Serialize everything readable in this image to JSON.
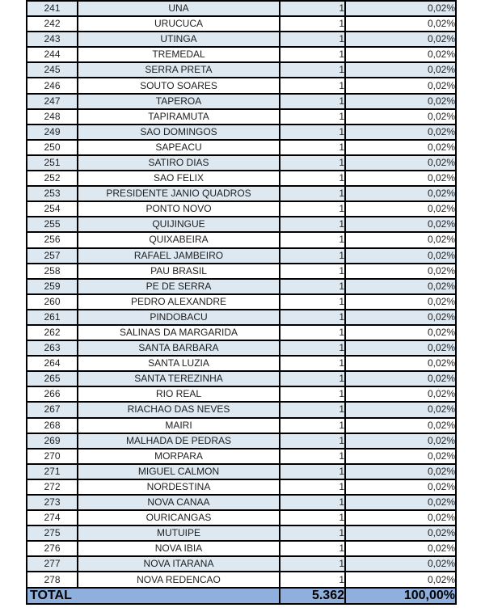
{
  "colors": {
    "stripe": "#dde8f1",
    "total_row_background": "#8fafdd",
    "border": "#000000",
    "text": "#1f1f1f",
    "total_text": "#000000"
  },
  "table": {
    "rows": [
      {
        "rank": "241",
        "municipality": "UNA",
        "count": "1",
        "percent": "0,02%"
      },
      {
        "rank": "242",
        "municipality": "URUCUCA",
        "count": "1",
        "percent": "0,02%"
      },
      {
        "rank": "243",
        "municipality": "UTINGA",
        "count": "1",
        "percent": "0,02%"
      },
      {
        "rank": "244",
        "municipality": "TREMEDAL",
        "count": "1",
        "percent": "0,02%"
      },
      {
        "rank": "245",
        "municipality": "SERRA PRETA",
        "count": "1",
        "percent": "0,02%"
      },
      {
        "rank": "246",
        "municipality": "SOUTO SOARES",
        "count": "1",
        "percent": "0,02%"
      },
      {
        "rank": "247",
        "municipality": "TAPEROA",
        "count": "1",
        "percent": "0,02%"
      },
      {
        "rank": "248",
        "municipality": "TAPIRAMUTA",
        "count": "1",
        "percent": "0,02%"
      },
      {
        "rank": "249",
        "municipality": "SAO DOMINGOS",
        "count": "1",
        "percent": "0,02%"
      },
      {
        "rank": "250",
        "municipality": "SAPEACU",
        "count": "1",
        "percent": "0,02%"
      },
      {
        "rank": "251",
        "municipality": "SATIRO DIAS",
        "count": "1",
        "percent": "0,02%"
      },
      {
        "rank": "252",
        "municipality": "SAO FELIX",
        "count": "1",
        "percent": "0,02%"
      },
      {
        "rank": "253",
        "municipality": "PRESIDENTE JANIO QUADROS",
        "count": "1",
        "percent": "0,02%"
      },
      {
        "rank": "254",
        "municipality": "PONTO NOVO",
        "count": "1",
        "percent": "0,02%"
      },
      {
        "rank": "255",
        "municipality": "QUIJINGUE",
        "count": "1",
        "percent": "0,02%"
      },
      {
        "rank": "256",
        "municipality": "QUIXABEIRA",
        "count": "1",
        "percent": "0,02%"
      },
      {
        "rank": "257",
        "municipality": "RAFAEL JAMBEIRO",
        "count": "1",
        "percent": "0,02%"
      },
      {
        "rank": "258",
        "municipality": "PAU BRASIL",
        "count": "1",
        "percent": "0,02%"
      },
      {
        "rank": "259",
        "municipality": "PE DE SERRA",
        "count": "1",
        "percent": "0,02%"
      },
      {
        "rank": "260",
        "municipality": "PEDRO ALEXANDRE",
        "count": "1",
        "percent": "0,02%"
      },
      {
        "rank": "261",
        "municipality": "PINDOBACU",
        "count": "1",
        "percent": "0,02%"
      },
      {
        "rank": "262",
        "municipality": "SALINAS DA MARGARIDA",
        "count": "1",
        "percent": "0,02%"
      },
      {
        "rank": "263",
        "municipality": "SANTA BARBARA",
        "count": "1",
        "percent": "0,02%"
      },
      {
        "rank": "264",
        "municipality": "SANTA LUZIA",
        "count": "1",
        "percent": "0,02%"
      },
      {
        "rank": "265",
        "municipality": "SANTA TEREZINHA",
        "count": "1",
        "percent": "0,02%"
      },
      {
        "rank": "266",
        "municipality": "RIO REAL",
        "count": "1",
        "percent": "0,02%"
      },
      {
        "rank": "267",
        "municipality": "RIACHAO DAS NEVES",
        "count": "1",
        "percent": "0,02%"
      },
      {
        "rank": "268",
        "municipality": "MAIRI",
        "count": "1",
        "percent": "0,02%"
      },
      {
        "rank": "269",
        "municipality": "MALHADA DE PEDRAS",
        "count": "1",
        "percent": "0,02%"
      },
      {
        "rank": "270",
        "municipality": "MORPARA",
        "count": "1",
        "percent": "0,02%"
      },
      {
        "rank": "271",
        "municipality": "MIGUEL CALMON",
        "count": "1",
        "percent": "0,02%"
      },
      {
        "rank": "272",
        "municipality": "NORDESTINA",
        "count": "1",
        "percent": "0,02%"
      },
      {
        "rank": "273",
        "municipality": "NOVA CANAA",
        "count": "1",
        "percent": "0,02%"
      },
      {
        "rank": "274",
        "municipality": "OURICANGAS",
        "count": "1",
        "percent": "0,02%"
      },
      {
        "rank": "275",
        "municipality": "MUTUIPE",
        "count": "1",
        "percent": "0,02%"
      },
      {
        "rank": "276",
        "municipality": "NOVA IBIA",
        "count": "1",
        "percent": "0,02%"
      },
      {
        "rank": "277",
        "municipality": "NOVA ITARANA",
        "count": "1",
        "percent": "0,02%"
      },
      {
        "rank": "278",
        "municipality": "NOVA REDENCAO",
        "count": "1",
        "percent": "0,02%"
      }
    ],
    "total": {
      "label": "TOTAL",
      "count": "5.362",
      "percent": "100,00%"
    }
  }
}
